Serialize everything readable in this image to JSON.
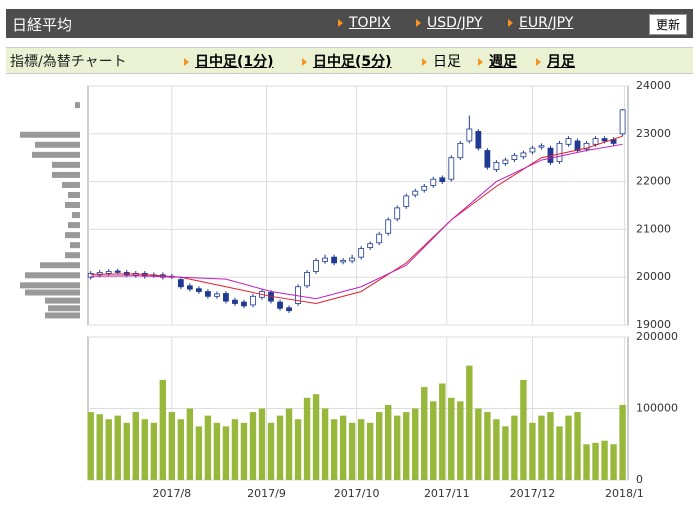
{
  "header": {
    "title": "日経平均",
    "links": [
      "TOPIX",
      "USD/JPY",
      "EUR/JPY"
    ],
    "button": "更新"
  },
  "tabs": {
    "label": "指標/為替チャート",
    "items": [
      "日中足(1分)",
      "日中足(5分)",
      "日足",
      "週足",
      "月足"
    ],
    "selected": 2
  },
  "chart_data": [
    {
      "type": "candlestick",
      "categories": [
        null,
        null,
        null,
        null,
        null,
        null,
        null,
        null,
        null,
        null,
        null,
        null,
        null,
        null,
        null,
        null,
        null,
        null,
        null,
        null,
        null,
        null,
        null,
        null,
        null,
        null,
        null,
        null,
        null,
        null,
        null,
        null,
        null,
        null,
        null,
        null,
        null,
        null,
        null,
        null,
        null,
        null,
        null,
        null,
        null,
        null,
        null,
        null,
        null,
        null,
        null,
        null,
        null,
        null,
        null,
        null,
        null,
        null,
        null,
        null
      ],
      "xticks": [
        {
          "value": 9,
          "label": "2017/8"
        },
        {
          "value": 19.5,
          "label": "2017/9"
        },
        {
          "value": 29.5,
          "label": "2017/10"
        },
        {
          "value": 39.5,
          "label": "2017/11"
        },
        {
          "value": 49,
          "label": "2017/12"
        },
        {
          "value": 59.2,
          "label": "2018/1"
        }
      ],
      "xlim": [
        -0.3,
        59.6
      ],
      "ylim": [
        19000,
        24000
      ],
      "yticks": [
        19000,
        20000,
        21000,
        22000,
        23000,
        24000
      ],
      "grid": true,
      "color": "#1f3a93",
      "open": [
        20000,
        20050,
        20080,
        20130,
        20100,
        20040,
        20080,
        20040,
        20050,
        20010,
        19950,
        19820,
        19760,
        19700,
        19600,
        19660,
        19520,
        19480,
        19420,
        19580,
        19680,
        19480,
        19360,
        19450,
        19820,
        20120,
        20330,
        20420,
        20320,
        20340,
        20420,
        20620,
        20720,
        20920,
        21220,
        21480,
        21720,
        21820,
        21920,
        22080,
        22050,
        22500,
        22850,
        23050,
        22650,
        22250,
        22380,
        22460,
        22520,
        22620,
        22720,
        22700,
        22420,
        22780,
        22850,
        22680,
        22780,
        22900,
        22880,
        23000
      ],
      "high": [
        20130,
        20150,
        20170,
        20180,
        20150,
        20130,
        20130,
        20100,
        20100,
        20070,
        20000,
        19870,
        19810,
        19750,
        19700,
        19710,
        19570,
        19530,
        19650,
        19750,
        19730,
        19530,
        19410,
        19850,
        20150,
        20400,
        20470,
        20470,
        20400,
        20470,
        20650,
        20750,
        20950,
        21250,
        21500,
        21750,
        21850,
        21950,
        22100,
        22130,
        22550,
        22850,
        23380,
        23100,
        22700,
        22450,
        22500,
        22600,
        22650,
        22750,
        22800,
        22750,
        22850,
        22950,
        22900,
        22850,
        22950,
        22950,
        22930,
        23520
      ],
      "low": [
        19950,
        20000,
        20030,
        20050,
        20000,
        19990,
        19970,
        19990,
        19950,
        19960,
        19750,
        19700,
        19650,
        19550,
        19550,
        19450,
        19400,
        19350,
        19370,
        19530,
        19450,
        19300,
        19250,
        19400,
        19770,
        20070,
        20280,
        20250,
        20270,
        20290,
        20370,
        20570,
        20670,
        20870,
        21170,
        21430,
        21670,
        21770,
        21870,
        21950,
        22000,
        22450,
        22800,
        22650,
        22250,
        22200,
        22330,
        22410,
        22470,
        22570,
        22670,
        22350,
        22370,
        22730,
        22600,
        22630,
        22730,
        22800,
        22750,
        22950
      ],
      "close": [
        20080,
        20100,
        20120,
        20100,
        20050,
        20080,
        20020,
        20050,
        20000,
        20020,
        19800,
        19750,
        19700,
        19600,
        19650,
        19500,
        19450,
        19400,
        19600,
        19700,
        19500,
        19350,
        19300,
        19800,
        20100,
        20350,
        20400,
        20300,
        20350,
        20400,
        20600,
        20700,
        20900,
        21200,
        21450,
        21700,
        21800,
        21900,
        22050,
        22000,
        22500,
        22800,
        23100,
        22700,
        22300,
        22400,
        22450,
        22550,
        22600,
        22700,
        22750,
        22400,
        22800,
        22900,
        22650,
        22800,
        22900,
        22850,
        22800,
        23500
      ],
      "lines": [
        {
          "color": "#e0202a",
          "x": [
            0,
            5,
            10,
            15,
            20,
            25,
            30,
            35,
            40,
            45,
            50,
            55,
            59
          ],
          "values": [
            20060,
            20070,
            20000,
            19800,
            19600,
            19450,
            19700,
            20300,
            21200,
            21900,
            22500,
            22700,
            22950
          ]
        },
        {
          "color": "#c020c0",
          "x": [
            0,
            5,
            10,
            15,
            20,
            25,
            30,
            35,
            40,
            45,
            50,
            55,
            59
          ],
          "values": [
            20020,
            20030,
            20000,
            19960,
            19700,
            19550,
            19800,
            20250,
            21200,
            22000,
            22450,
            22650,
            22780
          ]
        }
      ]
    },
    {
      "type": "bar",
      "ylim": [
        0,
        200000
      ],
      "yticks": [
        0,
        100000,
        200000
      ],
      "grid": true,
      "color": "#97b83a",
      "values": [
        95000,
        92000,
        85000,
        90000,
        80000,
        95000,
        85000,
        80000,
        140000,
        95000,
        85000,
        100000,
        75000,
        90000,
        80000,
        75000,
        85000,
        80000,
        95000,
        100000,
        80000,
        90000,
        100000,
        85000,
        115000,
        120000,
        100000,
        85000,
        90000,
        80000,
        85000,
        80000,
        95000,
        105000,
        90000,
        95000,
        100000,
        130000,
        110000,
        135000,
        115000,
        110000,
        160000,
        100000,
        95000,
        85000,
        75000,
        90000,
        140000,
        80000,
        90000,
        95000,
        75000,
        90000,
        95000,
        50000,
        52000,
        55000,
        50000,
        105000
      ]
    },
    {
      "type": "hbar",
      "color": "#999999",
      "levels": [
        23600,
        22980,
        22770,
        22560,
        22350,
        22140,
        21930,
        21720,
        21510,
        21300,
        21090,
        20880,
        20670,
        20460,
        20250,
        20040,
        19830,
        19680,
        19510,
        19350,
        19200
      ],
      "values": [
        5,
        60,
        45,
        48,
        28,
        28,
        18,
        12,
        15,
        8,
        12,
        15,
        10,
        15,
        40,
        55,
        60,
        55,
        35,
        32,
        35
      ]
    }
  ]
}
